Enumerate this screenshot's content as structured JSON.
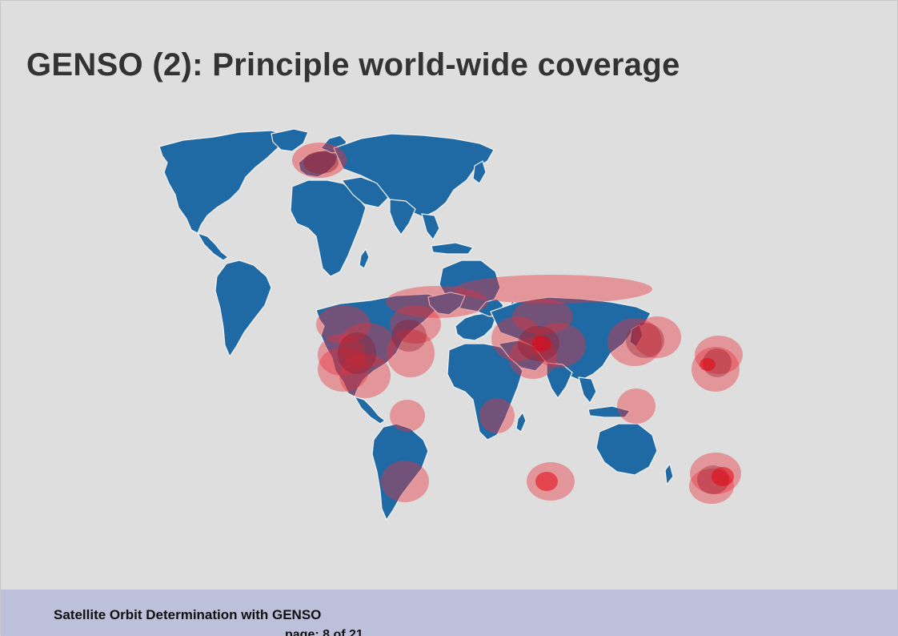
{
  "slide": {
    "title": "GENSO (2): Principle world-wide coverage"
  },
  "footer": {
    "title": "Satellite Orbit Determination with GENSO",
    "page": "page: 8 of 21"
  },
  "colors": {
    "land": "#1f6aa5",
    "coverage": "#e8333b",
    "background": "#dedede",
    "footer": "#bcc0da"
  }
}
